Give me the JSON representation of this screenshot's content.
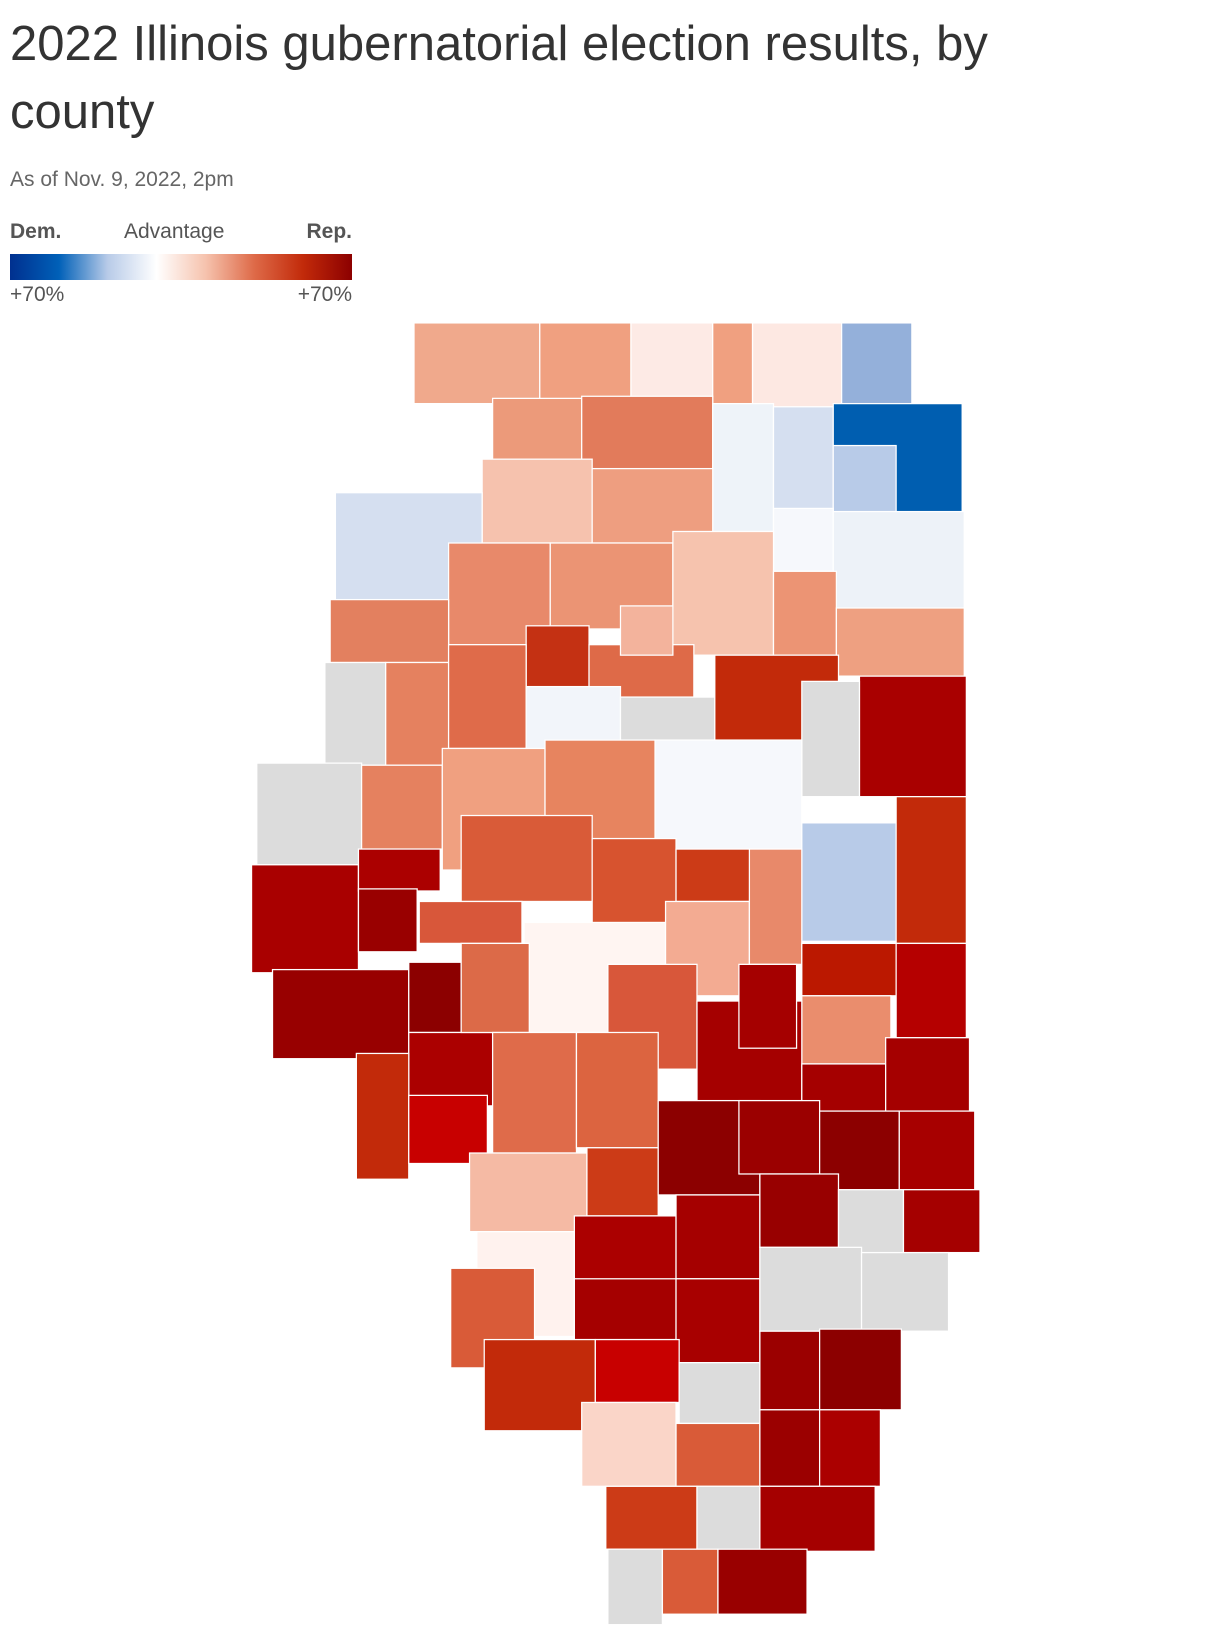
{
  "title": "2022 Illinois gubernatorial election results, by county",
  "subtitle": "As of Nov. 9, 2022, 2pm",
  "legend": {
    "left_label": "Dem.",
    "center_label": "Advantage",
    "right_label": "Rep.",
    "left_value": "+70%",
    "right_value": "+70%",
    "colors": [
      "#00308f",
      "#0060b8",
      "#b8cbe8",
      "#ffffff",
      "#f6c3ae",
      "#de6a48",
      "#c22a0a",
      "#8c0000"
    ]
  },
  "map": {
    "county_colors": [
      "#f0a98c",
      "#f0a080",
      "#fdeae5",
      "#f0a080",
      "#fde8e2",
      "#94b0da",
      "#ec9a7a",
      "#e27b5b",
      "#eef3f9",
      "#d5dff0",
      "#005eb0",
      "#b8cbe8",
      "#f6c2ae",
      "#ee9e80",
      "#f6f8fc",
      "#edf2f8",
      "#d5dff0",
      "#e8896a",
      "#eb9474",
      "#f6c3ae",
      "#ec9474",
      "#eea081",
      "#e3805f",
      "#c43113",
      "#de6a48",
      "#f3b39c",
      "#dcdcdc",
      "#e5815f",
      "#df6b4a",
      "#f2f5fa",
      "#dcdcdc",
      "#c22a0a",
      "#a90000",
      "#dcdcdc",
      "#dcdcdc",
      "#e5815f",
      "#f0a080",
      "#e7845f",
      "#f6f8fc",
      "#b8cbe8",
      "#c22a0a",
      "#a90000",
      "#ab0000",
      "#990000",
      "#d95b38",
      "#d7532f",
      "#cc3b17",
      "#d8573a",
      "#fff5f2",
      "#f3ab92",
      "#e8896a",
      "#bb1800",
      "#b50000",
      "#ea8d6d",
      "#980000",
      "#8c0000",
      "#ab0000",
      "#dc6a48",
      "#d8573a",
      "#a50000",
      "#a50000",
      "#c22a0a",
      "#c80000",
      "#df6b4a",
      "#dc6440",
      "#a50000",
      "#a50000",
      "#f5baa4",
      "#fff2ee",
      "#cc3b17",
      "#8c0000",
      "#9b0000",
      "#8c0000",
      "#a70000",
      "#ab0000",
      "#a50000",
      "#980000",
      "#dcdcdc",
      "#a50000",
      "#d95b38",
      "#a50000",
      "#a80000",
      "#dcdcdc",
      "#dcdcdc",
      "#c22a0a",
      "#c80000",
      "#dcdcdc",
      "#9b0000",
      "#8c0000",
      "#fad5c8",
      "#d95b38",
      "#9b0000",
      "#ab0000",
      "#cc3b17",
      "#dcdcdc",
      "#a50000",
      "#dcdcdc",
      "#d95b38",
      "#990000"
    ]
  }
}
